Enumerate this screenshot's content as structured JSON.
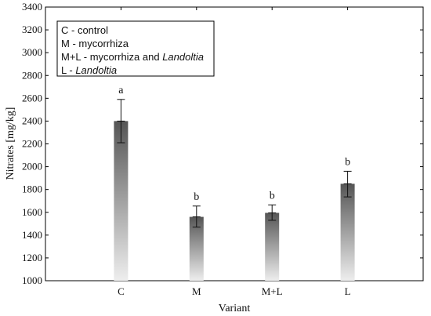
{
  "chart_data": {
    "type": "bar",
    "title": "",
    "xlabel": "Variant",
    "ylabel": "Nitrates [mg/kg]",
    "categories": [
      "C",
      "M",
      "M+L",
      "L"
    ],
    "values": [
      2400,
      1560,
      1595,
      1850
    ],
    "error_low": [
      2210,
      1470,
      1530,
      1735
    ],
    "error_high": [
      2590,
      1655,
      1665,
      1960
    ],
    "significance": [
      "a",
      "b",
      "b",
      "b"
    ],
    "ylim": [
      1000,
      3400
    ],
    "yticks": [
      1000,
      1200,
      1400,
      1600,
      1800,
      2000,
      2200,
      2400,
      2600,
      2800,
      3000,
      3200,
      3400
    ],
    "grid": false,
    "legend_placement": "top-left",
    "legend": [
      {
        "segments": [
          {
            "text": "C - control",
            "italic": false
          }
        ]
      },
      {
        "segments": [
          {
            "text": "M - mycorrhiza",
            "italic": false
          }
        ]
      },
      {
        "segments": [
          {
            "text": "M+L - mycorrhiza and ",
            "italic": false
          },
          {
            "text": "Landoltia",
            "italic": true
          }
        ]
      },
      {
        "segments": [
          {
            "text": "L - ",
            "italic": false
          },
          {
            "text": "Landoltia",
            "italic": true
          }
        ]
      }
    ],
    "colors": {
      "bar_top": "#555555",
      "bar_bottom": "#eeeeee",
      "axis": "#000000"
    }
  }
}
